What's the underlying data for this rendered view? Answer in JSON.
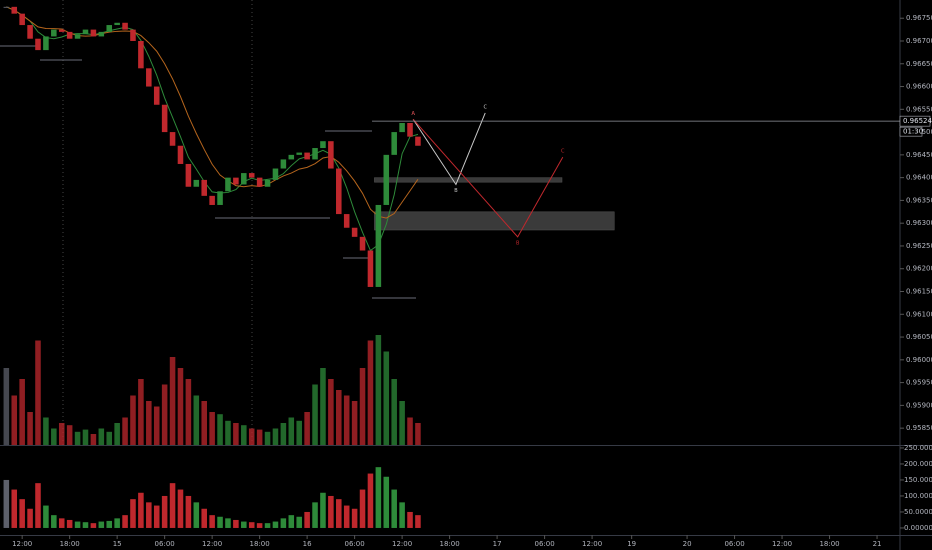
{
  "chart_data": {
    "type": "candlestick",
    "up_color": "#2e8b3a",
    "down_color": "#c0282d",
    "neutral_color": "#5d606b",
    "x": [
      -2,
      -1,
      0,
      1,
      2,
      3,
      4,
      5,
      6,
      7,
      8,
      9,
      10,
      11,
      12,
      13,
      14,
      15,
      16,
      17,
      18,
      19,
      20,
      21,
      22,
      23,
      24,
      25,
      26,
      27,
      28,
      29,
      30,
      31,
      32,
      33,
      34,
      35,
      36,
      37,
      38,
      39,
      40,
      41,
      42,
      43,
      44,
      45,
      46,
      47,
      48,
      49,
      50
    ],
    "close": [
      0.96775,
      0.9676,
      0.96735,
      0.96705,
      0.9668,
      0.9671,
      0.96725,
      0.9672,
      0.96705,
      0.96715,
      0.96725,
      0.9671,
      0.9672,
      0.96735,
      0.9674,
      0.96725,
      0.967,
      0.9664,
      0.966,
      0.9656,
      0.965,
      0.9647,
      0.9643,
      0.9638,
      0.96395,
      0.9636,
      0.9634,
      0.9637,
      0.964,
      0.96385,
      0.9641,
      0.964,
      0.9638,
      0.96395,
      0.9642,
      0.9644,
      0.9645,
      0.96455,
      0.9644,
      0.96465,
      0.9648,
      0.9642,
      0.9632,
      0.9629,
      0.9627,
      0.9624,
      0.9616,
      0.9634,
      0.9645,
      0.965,
      0.9652,
      0.9649,
      0.9647
    ],
    "volume": [
      70,
      45,
      60,
      30,
      95,
      25,
      15,
      20,
      18,
      12,
      14,
      10,
      15,
      12,
      20,
      25,
      45,
      60,
      40,
      35,
      55,
      80,
      70,
      60,
      45,
      40,
      30,
      28,
      22,
      20,
      18,
      15,
      14,
      12,
      15,
      20,
      25,
      22,
      30,
      55,
      70,
      60,
      50,
      45,
      40,
      70,
      95,
      100,
      85,
      60,
      40,
      25,
      20
    ],
    "indicator": [
      150,
      120,
      90,
      60,
      140,
      70,
      40,
      30,
      25,
      20,
      18,
      15,
      20,
      22,
      30,
      40,
      90,
      110,
      80,
      70,
      100,
      140,
      120,
      100,
      80,
      60,
      40,
      35,
      30,
      25,
      20,
      18,
      15,
      15,
      20,
      30,
      40,
      35,
      50,
      80,
      110,
      100,
      90,
      70,
      60,
      120,
      170,
      190,
      160,
      120,
      80,
      50,
      40
    ],
    "xlim": [
      -2.8,
      110.9
    ],
    "xticks": [
      {
        "value": 0,
        "label": "12:00"
      },
      {
        "value": 6,
        "label": "18:00"
      },
      {
        "value": 12,
        "label": "15"
      },
      {
        "value": 18,
        "label": "06:00"
      },
      {
        "value": 24,
        "label": "12:00"
      },
      {
        "value": 30,
        "label": "18:00"
      },
      {
        "value": 36,
        "label": "16"
      },
      {
        "value": 42,
        "label": "06:00"
      },
      {
        "value": 48,
        "label": "12:00"
      },
      {
        "value": 54,
        "label": "18:00"
      },
      {
        "value": 60,
        "label": "17"
      },
      {
        "value": 66,
        "label": "06:00"
      },
      {
        "value": 72,
        "label": "12:00"
      },
      {
        "value": 77,
        "label": "19"
      },
      {
        "value": 84,
        "label": "20"
      },
      {
        "value": 90,
        "label": "06:00"
      },
      {
        "value": 96,
        "label": "12:00"
      },
      {
        "value": 102,
        "label": "18:00"
      },
      {
        "value": 108,
        "label": "21"
      }
    ],
    "ylim": [
      0.95813,
      0.9679
    ],
    "yticks": [
      {
        "value": 0.9675,
        "label": "0.96750"
      },
      {
        "value": 0.967,
        "label": "0.96700"
      },
      {
        "value": 0.9665,
        "label": "0.96650"
      },
      {
        "value": 0.966,
        "label": "0.96600"
      },
      {
        "value": 0.9655,
        "label": "0.96550"
      },
      {
        "value": 0.965,
        "label": "0.96500"
      },
      {
        "value": 0.9645,
        "label": "0.96450"
      },
      {
        "value": 0.964,
        "label": "0.96400"
      },
      {
        "value": 0.9635,
        "label": "0.96350"
      },
      {
        "value": 0.963,
        "label": "0.96300"
      },
      {
        "value": 0.9625,
        "label": "0.96250"
      },
      {
        "value": 0.962,
        "label": "0.96200"
      },
      {
        "value": 0.9615,
        "label": "0.96150"
      },
      {
        "value": 0.961,
        "label": "0.96100"
      },
      {
        "value": 0.9605,
        "label": "0.96050"
      },
      {
        "value": 0.96,
        "label": "0.96000"
      },
      {
        "value": 0.9595,
        "label": "0.95950"
      },
      {
        "value": 0.959,
        "label": "0.95900"
      },
      {
        "value": 0.9585,
        "label": "0.95850"
      }
    ],
    "y2lim": [
      -22,
      253
    ],
    "y2ticks": [
      {
        "value": 250,
        "label": "250.00000"
      },
      {
        "value": 200,
        "label": "200.00000"
      },
      {
        "value": 150,
        "label": "150.00000"
      },
      {
        "value": 100,
        "label": "100.00000"
      },
      {
        "value": 50,
        "label": "50.00000"
      },
      {
        "value": 0,
        "label": "0.00000"
      }
    ],
    "last_price": {
      "value": 0.96524,
      "label": "0.96524"
    },
    "countdown": "01:30",
    "zones": [
      [
        0.964,
        0.9639
      ],
      [
        0.96325,
        0.96285
      ]
    ],
    "zone_x": [
      [
        44.5,
        68.2
      ],
      [
        44.5,
        74.8
      ]
    ],
    "patterns": [
      {
        "color": "#c8c8c8",
        "labels": [
          "A",
          "B",
          "C"
        ],
        "x": [
          49.4,
          54.8,
          58.5
        ],
        "y": [
          0.96528,
          0.96385,
          0.96542
        ]
      },
      {
        "color": "#c0282d",
        "labels": [
          "A",
          "B",
          "C"
        ],
        "x": [
          49.4,
          62.6,
          68.3
        ],
        "y": [
          0.96528,
          0.9627,
          0.96445
        ]
      }
    ]
  }
}
